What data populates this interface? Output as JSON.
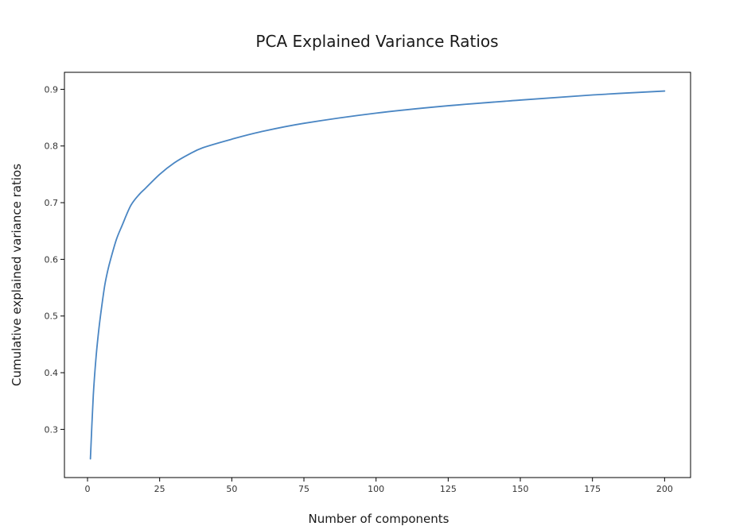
{
  "chart_data": {
    "type": "line",
    "title": "PCA Explained Variance Ratios",
    "xlabel": "Number of components",
    "ylabel": "Cumulative explained variance ratios",
    "xlim": [
      -8,
      209
    ],
    "ylim": [
      0.215,
      0.93
    ],
    "xticks": [
      0,
      25,
      50,
      75,
      100,
      125,
      150,
      175,
      200
    ],
    "yticks": [
      0.3,
      0.4,
      0.5,
      0.6,
      0.7,
      0.8,
      0.9
    ],
    "ytick_labels": [
      "0.3",
      "0.4",
      "0.5",
      "0.6",
      "0.7",
      "0.8",
      "0.9"
    ],
    "grid": false,
    "legend": "none",
    "series": [
      {
        "color": "#4a86c3",
        "x": [
          1,
          2,
          3,
          4,
          5,
          6,
          7,
          8,
          10,
          12,
          15,
          18,
          20,
          25,
          30,
          35,
          40,
          50,
          60,
          75,
          100,
          125,
          150,
          175,
          200
        ],
        "y": [
          0.248,
          0.36,
          0.43,
          0.48,
          0.52,
          0.555,
          0.58,
          0.6,
          0.635,
          0.66,
          0.695,
          0.715,
          0.725,
          0.75,
          0.77,
          0.785,
          0.797,
          0.812,
          0.825,
          0.84,
          0.858,
          0.871,
          0.881,
          0.89,
          0.897
        ]
      }
    ]
  }
}
